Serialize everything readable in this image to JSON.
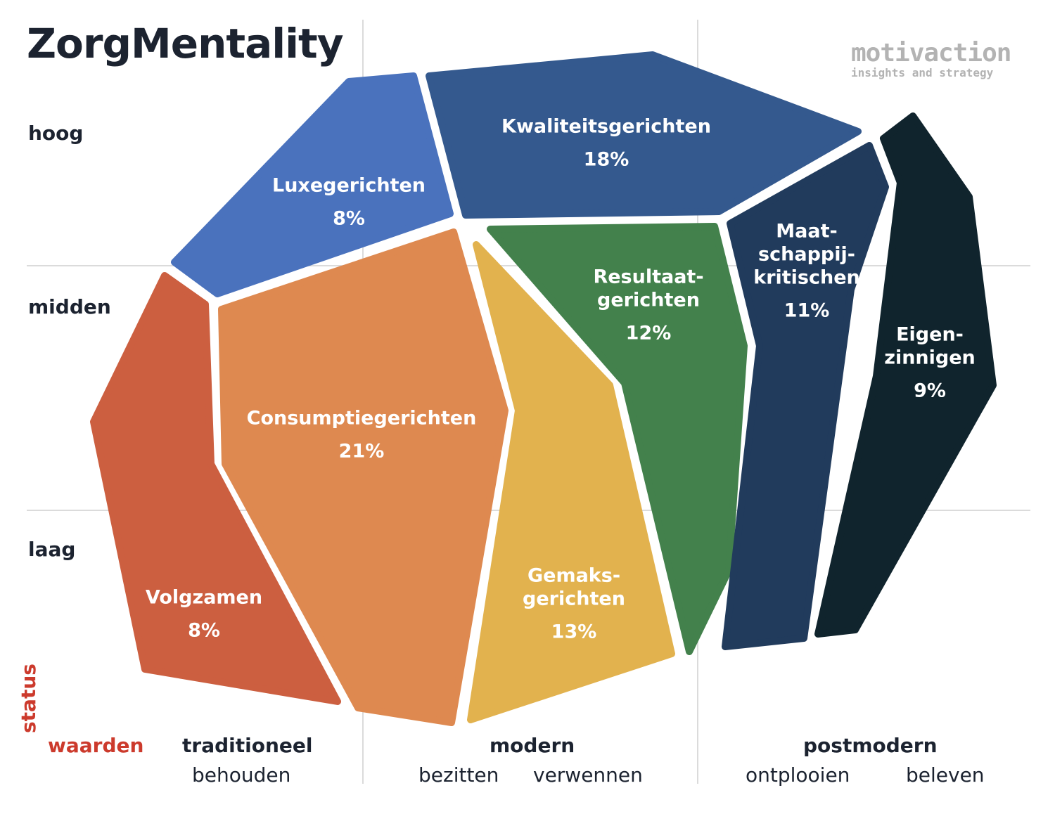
{
  "title": "ZorgMentality",
  "logo": {
    "name": "motivaction",
    "tagline": "insights and strategy"
  },
  "y_axis": {
    "title": "status",
    "levels": [
      "hoog",
      "midden",
      "laag"
    ]
  },
  "x_axis": {
    "title": "waarden",
    "groups": [
      {
        "label": "traditioneel",
        "sub": [
          "behouden"
        ]
      },
      {
        "label": "modern",
        "sub": [
          "bezitten",
          "verwennen"
        ]
      },
      {
        "label": "postmodern",
        "sub": [
          "ontplooien",
          "beleven"
        ]
      }
    ]
  },
  "segments": [
    {
      "name": "Luxegerichten",
      "lines": [
        "Luxegerichten"
      ],
      "share": "8%",
      "color": "#4a72bd"
    },
    {
      "name": "Kwaliteitsgerichten",
      "lines": [
        "Kwaliteitsgerichten"
      ],
      "share": "18%",
      "color": "#34598e"
    },
    {
      "name": "Volgzamen",
      "lines": [
        "Volgzamen"
      ],
      "share": "8%",
      "color": "#cc5f40"
    },
    {
      "name": "Consumptiegerichten",
      "lines": [
        "Consumptiegerichten"
      ],
      "share": "21%",
      "color": "#de8950"
    },
    {
      "name": "Gemaksgerichten",
      "lines": [
        "Gemaks-",
        "gerichten"
      ],
      "share": "13%",
      "color": "#e2b24e"
    },
    {
      "name": "Resultaatgerichten",
      "lines": [
        "Resultaat-",
        "gerichten"
      ],
      "share": "12%",
      "color": "#43814c"
    },
    {
      "name": "Maatschappijkritischen",
      "lines": [
        "Maat-",
        "schappij-",
        "kritischen"
      ],
      "share": "11%",
      "color": "#213b5c"
    },
    {
      "name": "Eigenzinnigen",
      "lines": [
        "Eigen-",
        "zinnigen"
      ],
      "share": "9%",
      "color": "#10242d"
    }
  ]
}
